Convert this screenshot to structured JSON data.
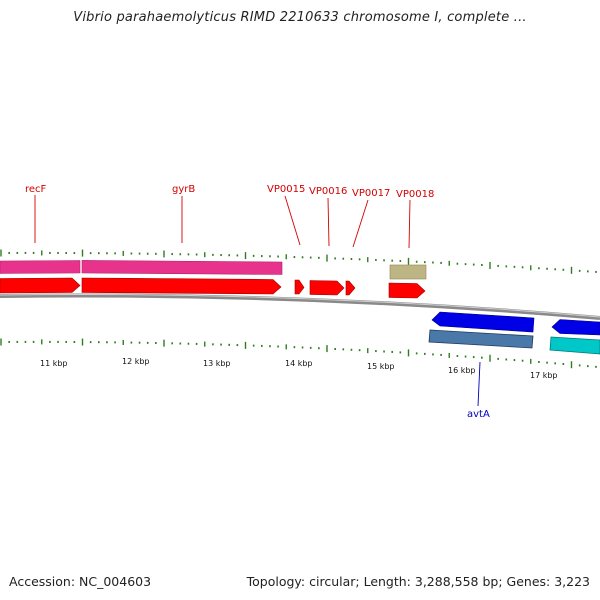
{
  "title": "Vibrio parahaemolyticus RIMD 2210633 chromosome I, complete ...",
  "footer": {
    "accession": "Accession: NC_004603",
    "topology": "Topology: circular; Length: 3,288,558 bp; Genes: 3,223"
  },
  "axis": {
    "start_kbp": 10,
    "end_kbp": 17,
    "ticks": [
      {
        "kbp": 11,
        "label": "11 kbp"
      },
      {
        "kbp": 12,
        "label": "12 kbp"
      },
      {
        "kbp": 13,
        "label": "13 kbp"
      },
      {
        "kbp": 14,
        "label": "14 kbp"
      },
      {
        "kbp": 15,
        "label": "15 kbp"
      },
      {
        "kbp": 16,
        "label": "16 kbp"
      },
      {
        "kbp": 17,
        "label": "17 kbp"
      }
    ]
  },
  "gene_labels": [
    {
      "name": "recF",
      "strand": "+",
      "color": "#d40000"
    },
    {
      "name": "gyrB",
      "strand": "+",
      "color": "#d40000"
    },
    {
      "name": "VP0015",
      "strand": "+",
      "color": "#d40000"
    },
    {
      "name": "VP0016",
      "strand": "+",
      "color": "#d40000"
    },
    {
      "name": "VP0017",
      "strand": "+",
      "color": "#d40000"
    },
    {
      "name": "VP0018",
      "strand": "+",
      "color": "#d40000"
    },
    {
      "name": "avtA",
      "strand": "-",
      "color": "#0000c0"
    }
  ],
  "colors": {
    "forward_cds": "#ff0000",
    "forward_gene": "#e8338c",
    "reverse_cds": "#0000e6",
    "reverse_gene_dark": "#4a78a8",
    "reverse_gene_light": "#00c8c8",
    "misc_feature": "#bdb583",
    "backbone": "#8a8a8a",
    "tick": "#2e7d1e"
  }
}
